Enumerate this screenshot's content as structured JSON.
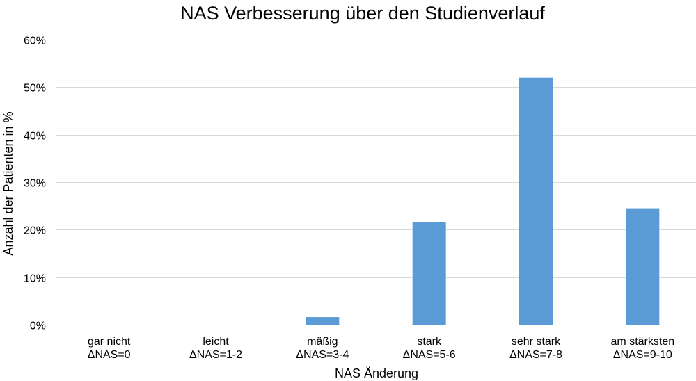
{
  "chart_data": {
    "type": "bar",
    "title": "NAS Verbesserung über den Studienverlauf",
    "xlabel": "NAS Änderung",
    "ylabel": "Anzahl der Patienten in %",
    "categories": [
      [
        "gar nicht",
        "ΔNAS=0"
      ],
      [
        "leicht",
        "ΔNAS=1-2"
      ],
      [
        "mäßig",
        "ΔNAS=3-4"
      ],
      [
        "stark",
        "ΔNAS=5-6"
      ],
      [
        "sehr stark",
        "ΔNAS=7-8"
      ],
      [
        "am stärksten",
        "ΔNAS=9-10"
      ]
    ],
    "values": [
      0,
      0,
      1.6,
      21.6,
      52.0,
      24.5
    ],
    "ylim": [
      0,
      60
    ],
    "yticks": [
      0,
      10,
      20,
      30,
      40,
      50,
      60
    ],
    "ytick_labels": [
      "0%",
      "10%",
      "20%",
      "30%",
      "40%",
      "50%",
      "60%"
    ],
    "grid": true,
    "legend": "none",
    "colors": {
      "bar": "#5b9bd5",
      "grid": "#d9d9d9",
      "text": "#000000"
    }
  }
}
